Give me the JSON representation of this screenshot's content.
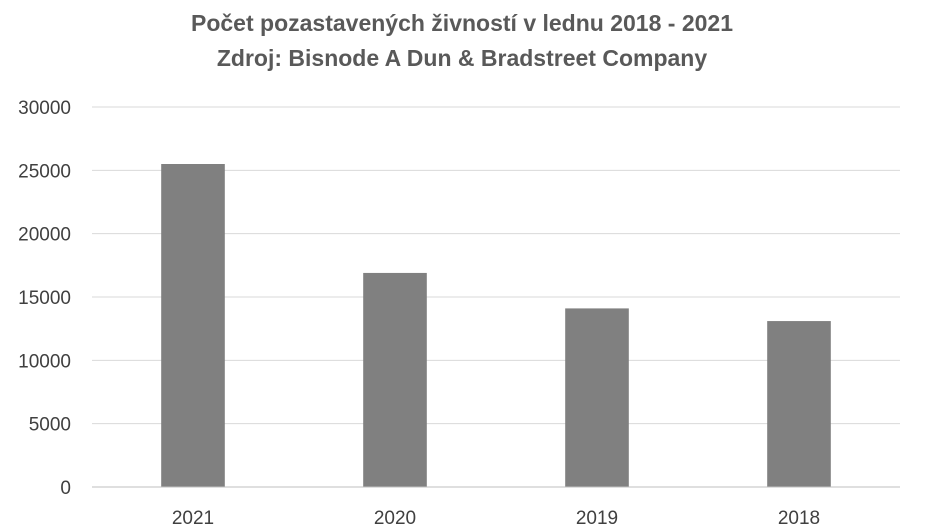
{
  "chart_data": {
    "type": "bar",
    "title": "Počet pozastavených živností v lednu 2018 - 2021",
    "subtitle": "Zdroj: Bisnode A Dun & Bradstreet Company",
    "categories": [
      "2021",
      "2020",
      "2019",
      "2018"
    ],
    "series": [
      {
        "values": [
          25500,
          16900,
          14100,
          13100
        ],
        "color": "#808080"
      }
    ],
    "xlabel": "",
    "ylabel": "",
    "ylim": [
      0,
      30000
    ],
    "yticks": [
      0,
      5000,
      10000,
      15000,
      20000,
      25000,
      30000
    ],
    "grid": true,
    "legend": "none"
  }
}
